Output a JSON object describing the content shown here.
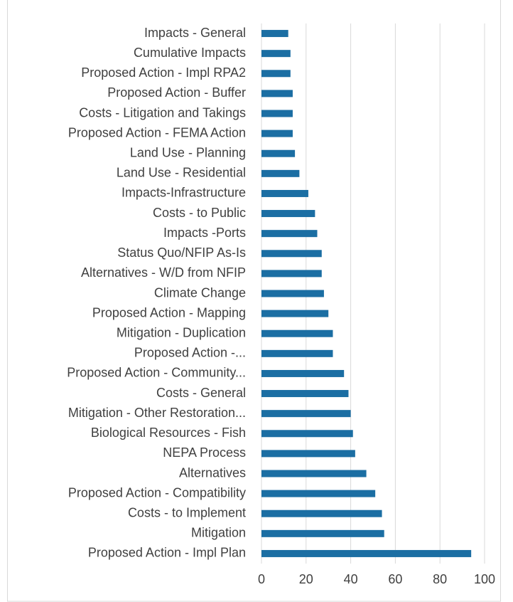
{
  "chart_data": {
    "type": "barh",
    "categories": [
      "Impacts - General",
      "Cumulative Impacts",
      "Proposed Action - Impl RPA2",
      "Proposed Action - Buffer",
      "Costs - Litigation and Takings",
      "Proposed Action - FEMA Action",
      "Land Use - Planning",
      "Land Use - Residential",
      "Impacts-Infrastructure",
      "Costs - to Public",
      "Impacts -Ports",
      "Status Quo/NFIP As-Is",
      "Alternatives - W/D from NFIP",
      "Climate Change",
      "Proposed Action - Mapping",
      "Mitigation - Duplication",
      "Proposed Action -...",
      "Proposed Action - Community...",
      "Costs - General",
      "Mitigation - Other Restoration...",
      "Biological Resources - Fish ",
      "NEPA Process",
      "Alternatives",
      "Proposed Action - Compatibility ",
      "Costs - to Implement",
      "Mitigation",
      "Proposed Action - Impl Plan"
    ],
    "values": [
      12,
      13,
      13,
      14,
      14,
      14,
      15,
      17,
      21,
      24,
      25,
      27,
      27,
      28,
      30,
      32,
      32,
      37,
      39,
      40,
      41,
      42,
      47,
      51,
      54,
      55,
      94
    ],
    "color": "#1b6ea3",
    "xlim": [
      0,
      100
    ],
    "xticks": [
      0,
      20,
      40,
      60,
      80,
      100
    ],
    "grid": true
  }
}
